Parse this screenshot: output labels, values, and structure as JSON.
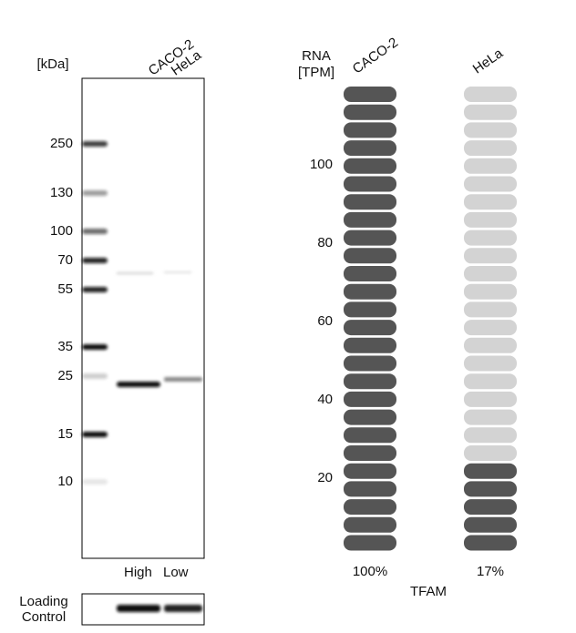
{
  "blot": {
    "unit_label": "[kDa]",
    "lanes": [
      "CACO-2",
      "HeLa"
    ],
    "markers": [
      "250",
      "130",
      "100",
      "70",
      "55",
      "35",
      "25",
      "15",
      "10"
    ],
    "levels": [
      "High",
      "Low"
    ],
    "loading_label": [
      "Loading",
      "Control"
    ]
  },
  "rna": {
    "axis_title": [
      "RNA",
      "[TPM]"
    ],
    "yticks": [
      20,
      40,
      60,
      80,
      100
    ],
    "samples": [
      {
        "name": "CACO-2",
        "percent": {
          "value": 100,
          "label": "100%"
        },
        "filled": 26
      },
      {
        "name": "HeLa",
        "percent": {
          "value": 17,
          "label": "17%"
        },
        "filled": 5
      }
    ],
    "total": 26,
    "gene": "TFAM"
  }
}
